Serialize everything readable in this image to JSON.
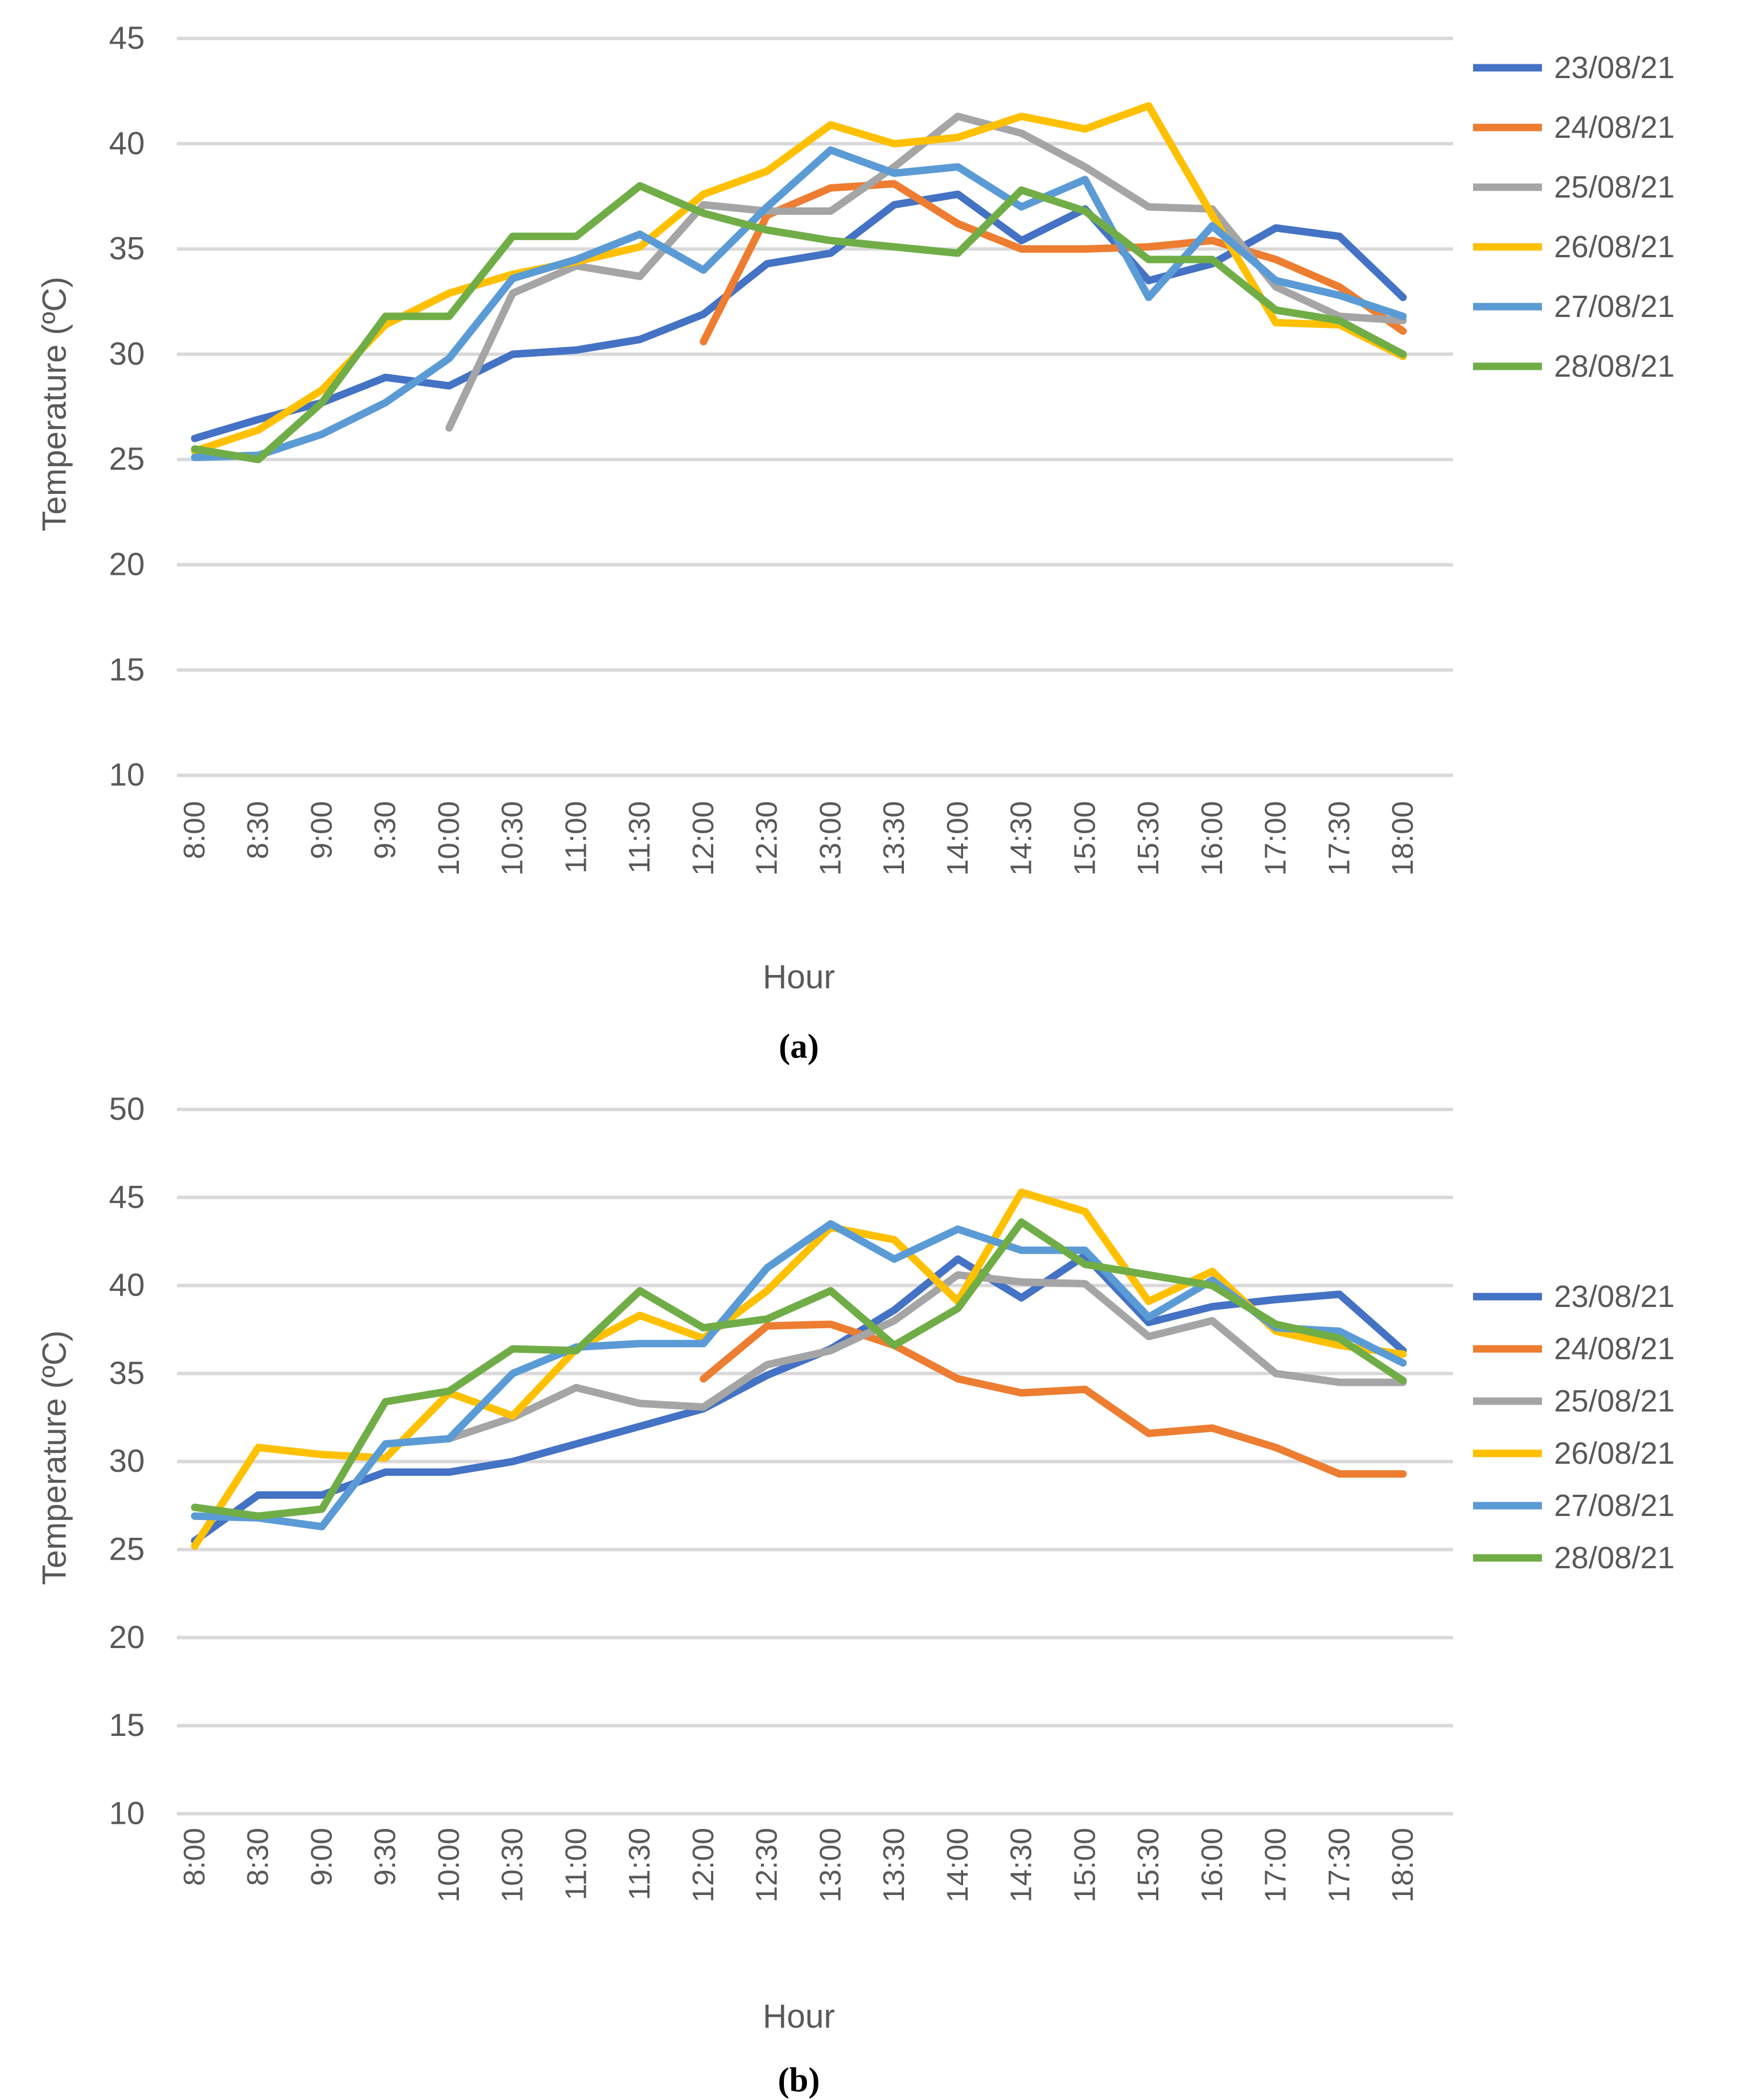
{
  "figure": {
    "x_axis_title": "Hour",
    "y_axis_title": "Temperature (ºC)",
    "caption_a": "(a)",
    "caption_b": "(b)",
    "text_color": "#595959",
    "gridline_color": "#D9D9D9"
  },
  "chart_data": [
    {
      "type": "line",
      "panel": "a",
      "xlabel": "Hour",
      "ylabel": "Temperature (ºC)",
      "legend_position": "right",
      "grid": true,
      "ylim": [
        10,
        45
      ],
      "yticks": [
        45,
        40,
        35,
        30,
        25,
        20,
        15,
        10
      ],
      "categories": [
        "8:00",
        "8:30",
        "9:00",
        "9:30",
        "10:00",
        "10:30",
        "11:00",
        "11:30",
        "12:00",
        "12:30",
        "13:00",
        "13:30",
        "14:00",
        "14:30",
        "15:00",
        "15:30",
        "16:00",
        "17:00",
        "17:30",
        "18:00"
      ],
      "series": [
        {
          "name": "23/08/21",
          "color": "#4472C4",
          "values": [
            26.0,
            26.9,
            27.7,
            28.9,
            28.5,
            30.0,
            30.2,
            30.7,
            31.9,
            34.3,
            34.8,
            37.1,
            37.6,
            35.4,
            36.9,
            33.5,
            34.3,
            36.0,
            35.6,
            32.7
          ]
        },
        {
          "name": "24/08/21",
          "color": "#ED7D31",
          "values": [
            null,
            null,
            null,
            null,
            null,
            null,
            null,
            null,
            30.6,
            36.6,
            37.9,
            38.1,
            36.2,
            35.0,
            35.0,
            35.1,
            35.4,
            34.5,
            33.2,
            31.1
          ]
        },
        {
          "name": "25/08/21",
          "color": "#A5A5A5",
          "values": [
            null,
            null,
            null,
            null,
            26.5,
            32.9,
            34.2,
            33.7,
            37.1,
            36.8,
            36.8,
            38.9,
            41.3,
            40.5,
            38.9,
            37.0,
            36.9,
            33.2,
            31.8,
            31.6
          ]
        },
        {
          "name": "26/08/21",
          "color": "#FFC000",
          "values": [
            25.4,
            26.4,
            28.3,
            31.4,
            32.9,
            33.8,
            34.4,
            35.1,
            37.6,
            38.7,
            40.9,
            40.0,
            40.3,
            41.3,
            40.7,
            41.8,
            36.6,
            31.5,
            31.4,
            29.9
          ]
        },
        {
          "name": "27/08/21",
          "color": "#5B9BD5",
          "values": [
            25.1,
            25.2,
            26.2,
            27.7,
            29.8,
            33.6,
            34.5,
            35.7,
            34.0,
            37.0,
            39.7,
            38.6,
            38.9,
            37.0,
            38.3,
            32.7,
            36.1,
            33.5,
            32.8,
            31.8
          ]
        },
        {
          "name": "28/08/21",
          "color": "#70AD47",
          "values": [
            25.5,
            25.0,
            27.7,
            31.8,
            31.8,
            35.6,
            35.6,
            38.0,
            36.7,
            35.9,
            35.4,
            35.1,
            34.8,
            37.8,
            36.8,
            34.5,
            34.5,
            32.1,
            31.6,
            30.0
          ]
        }
      ]
    },
    {
      "type": "line",
      "panel": "b",
      "xlabel": "Hour",
      "ylabel": "Temperature (ºC)",
      "legend_position": "right",
      "grid": true,
      "ylim": [
        10,
        50
      ],
      "yticks": [
        50,
        45,
        40,
        35,
        30,
        25,
        20,
        15,
        10
      ],
      "categories": [
        "8:00",
        "8:30",
        "9:00",
        "9:30",
        "10:00",
        "10:30",
        "11:00",
        "11:30",
        "12:00",
        "12:30",
        "13:00",
        "13:30",
        "14:00",
        "14:30",
        "15:00",
        "15:30",
        "16:00",
        "17:00",
        "17:30",
        "18:00"
      ],
      "series": [
        {
          "name": "23/08/21",
          "color": "#4472C4",
          "values": [
            25.5,
            28.1,
            28.1,
            29.4,
            29.4,
            30.0,
            31.0,
            32.0,
            33.0,
            34.9,
            36.4,
            38.6,
            41.5,
            39.3,
            41.7,
            37.9,
            38.8,
            39.2,
            39.5,
            36.3
          ]
        },
        {
          "name": "24/08/21",
          "color": "#ED7D31",
          "values": [
            null,
            null,
            null,
            null,
            null,
            null,
            null,
            null,
            34.7,
            37.7,
            37.8,
            36.6,
            34.7,
            33.9,
            34.1,
            31.6,
            31.9,
            30.8,
            29.3,
            29.3
          ]
        },
        {
          "name": "25/08/21",
          "color": "#A5A5A5",
          "values": [
            null,
            null,
            null,
            null,
            31.3,
            32.5,
            34.2,
            33.3,
            33.1,
            35.5,
            36.3,
            38.0,
            40.6,
            40.2,
            40.1,
            37.1,
            38.0,
            35.0,
            34.5,
            34.5
          ]
        },
        {
          "name": "26/08/21",
          "color": "#FFC000",
          "values": [
            25.2,
            30.8,
            30.4,
            30.2,
            33.9,
            32.6,
            36.4,
            38.3,
            37.0,
            39.7,
            43.3,
            42.6,
            39.1,
            45.3,
            44.2,
            39.1,
            40.8,
            37.4,
            36.6,
            36.1
          ]
        },
        {
          "name": "27/08/21",
          "color": "#5B9BD5",
          "values": [
            26.9,
            26.8,
            26.3,
            31.0,
            31.3,
            35.0,
            36.5,
            36.7,
            36.7,
            41.0,
            43.5,
            41.5,
            43.2,
            42.0,
            42.0,
            38.2,
            40.3,
            37.6,
            37.4,
            35.6
          ]
        },
        {
          "name": "28/08/21",
          "color": "#70AD47",
          "values": [
            27.4,
            26.9,
            27.3,
            33.4,
            34.0,
            36.4,
            36.3,
            39.7,
            37.6,
            38.1,
            39.7,
            36.6,
            38.7,
            43.6,
            41.2,
            40.6,
            40.0,
            37.8,
            37.0,
            34.6
          ]
        }
      ]
    }
  ]
}
